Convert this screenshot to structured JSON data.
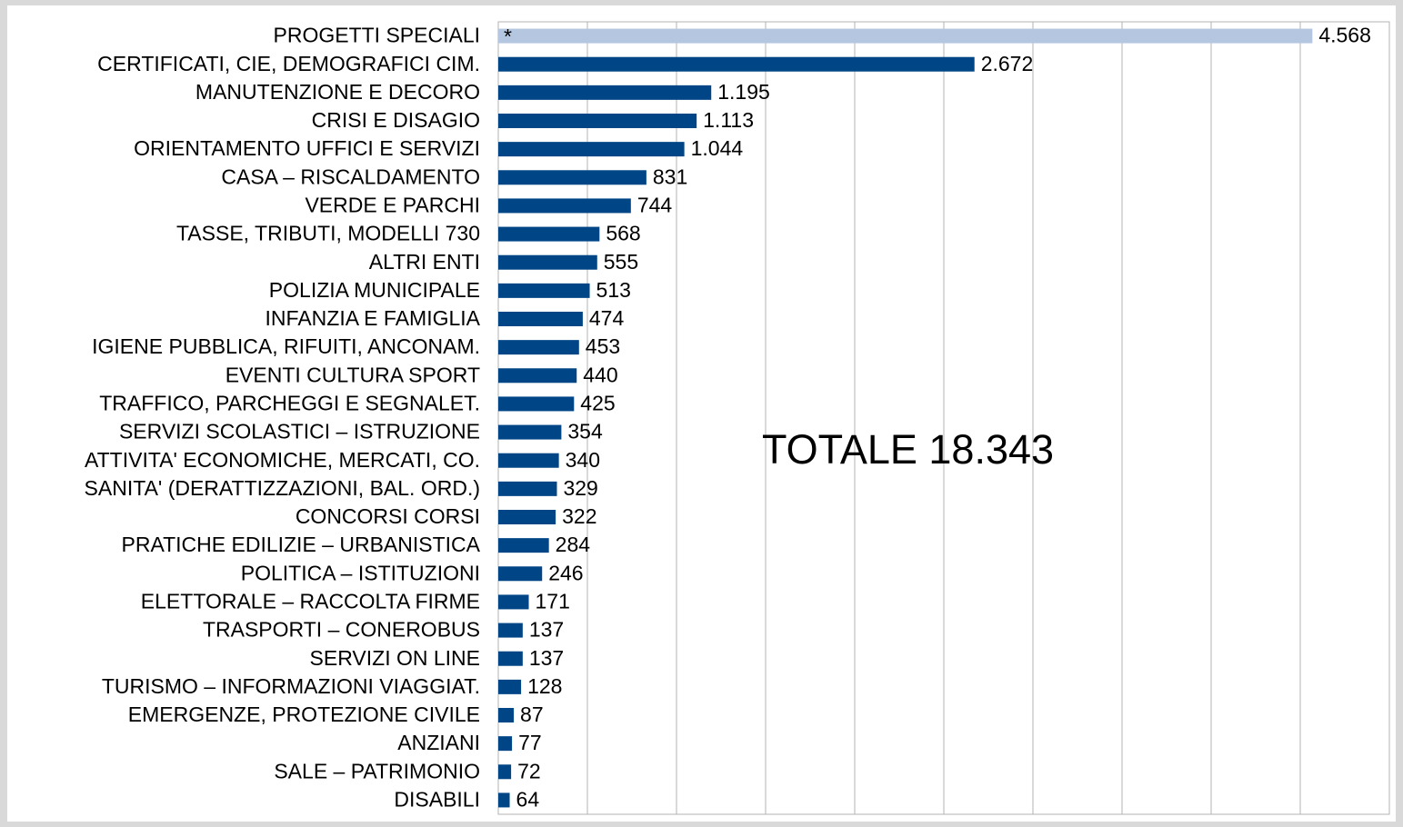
{
  "chart_data": {
    "type": "bar",
    "orientation": "horizontal",
    "categories": [
      "PROGETTI SPECIALI",
      "CERTIFICATI, CIE, DEMOGRAFICI CIM.",
      "MANUTENZIONE E DECORO",
      "CRISI E DISAGIO",
      "ORIENTAMENTO UFFICI E SERVIZI",
      "CASA – RISCALDAMENTO",
      "VERDE E PARCHI",
      "TASSE, TRIBUTI, MODELLI 730",
      "ALTRI ENTI",
      "POLIZIA MUNICIPALE",
      "INFANZIA E FAMIGLIA",
      "IGIENE PUBBLICA, RIFUITI, ANCONAM.",
      "EVENTI CULTURA SPORT",
      "TRAFFICO, PARCHEGGI E SEGNALET.",
      "SERVIZI SCOLASTICI – ISTRUZIONE",
      "ATTIVITA' ECONOMICHE, MERCATI, CO.",
      "SANITA' (DERATTIZZAZIONI, BAL. ORD.)",
      "CONCORSI CORSI",
      "PRATICHE EDILIZIE – URBANISTICA",
      "POLITICA – ISTITUZIONI",
      "ELETTORALE – RACCOLTA FIRME",
      "TRASPORTI – CONEROBUS",
      "SERVIZI ON LINE",
      "TURISMO – INFORMAZIONI VIAGGIAT.",
      "EMERGENZE, PROTEZIONE CIVILE",
      "ANZIANI",
      "SALE – PATRIMONIO",
      "DISABILI"
    ],
    "values": [
      4568,
      2672,
      1195,
      1113,
      1044,
      831,
      744,
      568,
      555,
      513,
      474,
      453,
      440,
      425,
      354,
      340,
      329,
      322,
      284,
      246,
      171,
      137,
      137,
      128,
      87,
      77,
      72,
      64
    ],
    "value_labels": [
      "4.568",
      "2.672",
      "1.195",
      "1.113",
      "1.044",
      "831",
      "744",
      "568",
      "555",
      "513",
      "474",
      "453",
      "440",
      "425",
      "354",
      "340",
      "329",
      "322",
      "284",
      "246",
      "171",
      "137",
      "137",
      "128",
      "87",
      "77",
      "72",
      "64"
    ],
    "colors": [
      "#b4c6e0",
      "#004586",
      "#004586",
      "#004586",
      "#004586",
      "#004586",
      "#004586",
      "#004586",
      "#004586",
      "#004586",
      "#004586",
      "#004586",
      "#004586",
      "#004586",
      "#004586",
      "#004586",
      "#004586",
      "#004586",
      "#004586",
      "#004586",
      "#004586",
      "#004586",
      "#004586",
      "#004586",
      "#004586",
      "#004586",
      "#004586",
      "#004586"
    ],
    "annotations": [
      "*",
      "TOTALE 18.343"
    ],
    "xlim": [
      0,
      5000
    ],
    "xticks": [
      0,
      500,
      1000,
      1500,
      2000,
      2500,
      3000,
      3500,
      4000,
      4500,
      5000
    ],
    "grid": true
  }
}
